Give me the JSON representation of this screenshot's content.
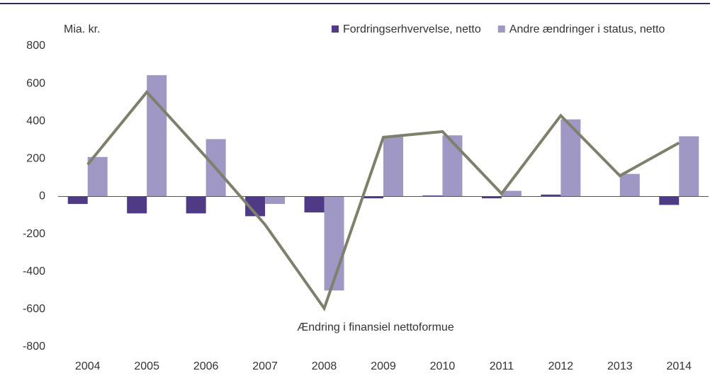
{
  "chart_data": {
    "type": "bar",
    "y_label": "Mia. kr.",
    "categories": [
      "2004",
      "2005",
      "2006",
      "2007",
      "2008",
      "2009",
      "2010",
      "2011",
      "2012",
      "2013",
      "2014"
    ],
    "series": [
      {
        "name": "Fordringserhvervelse, netto",
        "color": "#4f3b85",
        "values": [
          -40,
          -90,
          -90,
          -105,
          -85,
          -10,
          5,
          -10,
          10,
          0,
          -45
        ]
      },
      {
        "name": "Andre ændringer i status, netto",
        "color": "#a098c4",
        "values": [
          210,
          645,
          305,
          -40,
          -500,
          320,
          325,
          30,
          410,
          120,
          320
        ]
      },
      {
        "name": "Ændring i finansiel nettoformue",
        "type": "line",
        "color": "#7f7f6c",
        "values": [
          170,
          555,
          210,
          -150,
          -595,
          315,
          345,
          15,
          430,
          110,
          285
        ]
      }
    ],
    "ylim": [
      -800,
      800
    ],
    "yticks": [
      -800,
      -600,
      -400,
      -200,
      0,
      200,
      400,
      600,
      800
    ]
  }
}
